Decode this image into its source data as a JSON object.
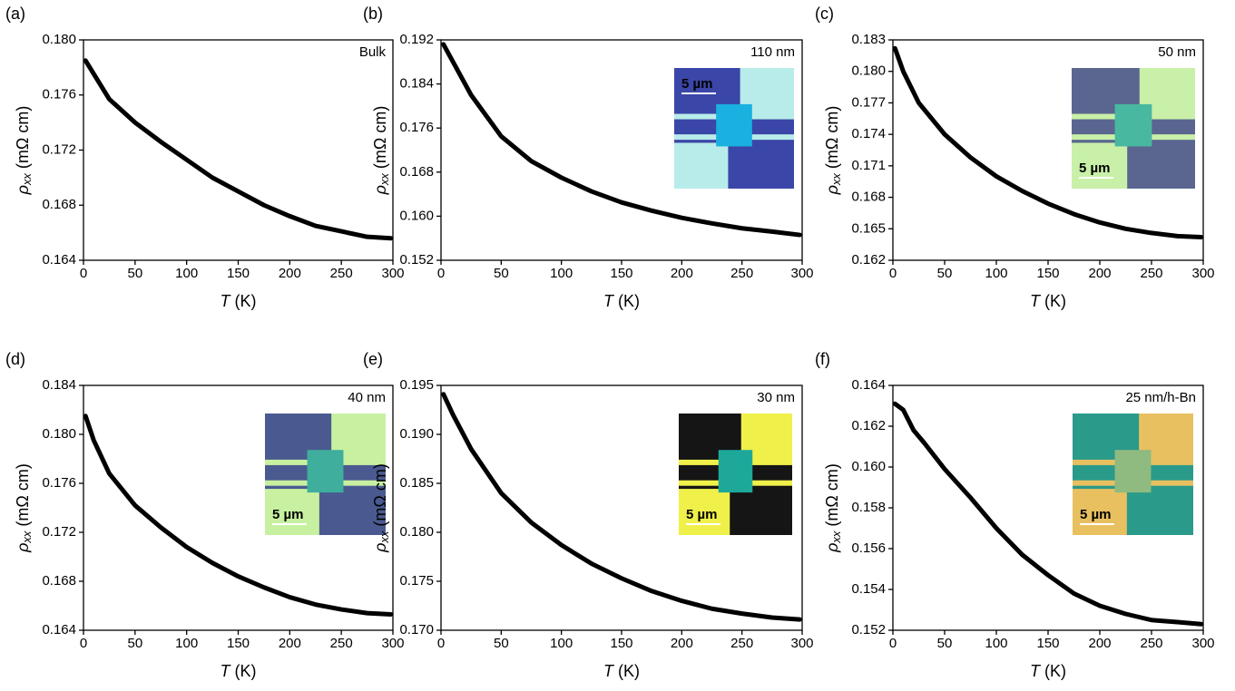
{
  "chart_data": [
    {
      "type": "line",
      "panel": "(a)",
      "annotation": "Bulk",
      "x_label": {
        "symbol": "T",
        "unit": "(K)"
      },
      "y_label": {
        "symbol": "ρ",
        "subscript": "xx",
        "unit": "(mΩ cm)"
      },
      "x": [
        2,
        25,
        50,
        75,
        100,
        125,
        150,
        175,
        200,
        225,
        250,
        275,
        298
      ],
      "values": [
        0.1785,
        0.1757,
        0.174,
        0.1726,
        0.1713,
        0.17,
        0.169,
        0.168,
        0.1672,
        0.1665,
        0.1661,
        0.1657,
        0.1656
      ],
      "color": "#000000",
      "xlim": [
        0,
        300
      ],
      "xticks": [
        0,
        50,
        100,
        150,
        200,
        250,
        300
      ],
      "ylim": [
        0.164,
        0.18
      ],
      "yticks": [
        0.164,
        0.168,
        0.172,
        0.176,
        {
          "value": 0.18,
          "label": "0.180"
        }
      ]
    },
    {
      "type": "line",
      "panel": "(b)",
      "annotation": "110 nm",
      "inset_label": "5 µm",
      "x_label": {
        "symbol": "T",
        "unit": "(K)"
      },
      "y_label": {
        "symbol": "ρ",
        "subscript": "xx",
        "unit": "(mΩ cm)"
      },
      "x": [
        2,
        10,
        25,
        50,
        75,
        100,
        125,
        150,
        175,
        200,
        225,
        250,
        275,
        298
      ],
      "values": [
        0.1912,
        0.188,
        0.182,
        0.1745,
        0.17,
        0.167,
        0.1645,
        0.1625,
        0.161,
        0.1597,
        0.1587,
        0.1578,
        0.1572,
        0.1566
      ],
      "color": "#000000",
      "xlim": [
        0,
        300
      ],
      "xticks": [
        0,
        50,
        100,
        150,
        200,
        250,
        300
      ],
      "ylim": [
        0.152,
        0.192
      ],
      "yticks": [
        0.152,
        {
          "value": 0.16,
          "label": "0.160"
        },
        0.168,
        0.176,
        0.184,
        0.192
      ]
    },
    {
      "type": "line",
      "panel": "(c)",
      "annotation": "50 nm",
      "inset_label": "5 µm",
      "x_label": {
        "symbol": "T",
        "unit": "(K)"
      },
      "y_label": {
        "symbol": "ρ",
        "subscript": "xx",
        "unit": "(mΩ cm)"
      },
      "x": [
        2,
        10,
        25,
        50,
        75,
        100,
        125,
        150,
        175,
        200,
        225,
        250,
        275,
        298
      ],
      "values": [
        0.1822,
        0.18,
        0.177,
        0.174,
        0.1718,
        0.17,
        0.1686,
        0.1674,
        0.1664,
        0.1656,
        0.165,
        0.1646,
        0.1643,
        0.1642
      ],
      "color": "#000000",
      "xlim": [
        0,
        300
      ],
      "xticks": [
        0,
        50,
        100,
        150,
        200,
        250,
        300
      ],
      "ylim": [
        0.162,
        0.183
      ],
      "yticks": [
        0.162,
        0.165,
        0.168,
        0.171,
        0.174,
        0.177,
        {
          "value": 0.18,
          "label": "0.180"
        },
        0.183
      ]
    },
    {
      "type": "line",
      "panel": "(d)",
      "annotation": "40 nm",
      "inset_label": "5 µm",
      "x_label": {
        "symbol": "T",
        "unit": "(K)"
      },
      "y_label": {
        "symbol": "ρ",
        "subscript": "xx",
        "unit": "(mΩ cm)"
      },
      "x": [
        2,
        10,
        25,
        50,
        75,
        100,
        125,
        150,
        175,
        200,
        225,
        250,
        275,
        298
      ],
      "values": [
        0.1815,
        0.1795,
        0.1768,
        0.1742,
        0.1724,
        0.1708,
        0.1695,
        0.1684,
        0.1675,
        0.1667,
        0.1661,
        0.1657,
        0.1654,
        0.1653
      ],
      "color": "#000000",
      "xlim": [
        0,
        300
      ],
      "xticks": [
        0,
        50,
        100,
        150,
        200,
        250,
        300
      ],
      "ylim": [
        0.164,
        0.184
      ],
      "yticks": [
        0.164,
        0.168,
        0.172,
        0.176,
        {
          "value": 0.18,
          "label": "0.180"
        },
        0.184
      ]
    },
    {
      "type": "line",
      "panel": "(e)",
      "annotation": "30 nm",
      "inset_label": "5 µm",
      "x_label": {
        "symbol": "T",
        "unit": "(K)"
      },
      "y_label": {
        "symbol": "ρ",
        "subscript": "xx",
        "unit": "(mΩ cm)"
      },
      "x": [
        2,
        10,
        25,
        50,
        75,
        100,
        125,
        150,
        175,
        200,
        225,
        250,
        275,
        298
      ],
      "values": [
        0.1941,
        0.192,
        0.1885,
        0.184,
        0.181,
        0.1787,
        0.1768,
        0.1753,
        0.174,
        0.173,
        0.1722,
        0.1717,
        0.1713,
        0.1711
      ],
      "color": "#000000",
      "xlim": [
        0,
        300
      ],
      "xticks": [
        0,
        50,
        100,
        150,
        200,
        250,
        300
      ],
      "ylim": [
        0.17,
        0.195
      ],
      "yticks": [
        {
          "value": 0.17,
          "label": "0.170"
        },
        0.175,
        {
          "value": 0.18,
          "label": "0.180"
        },
        0.185,
        {
          "value": 0.19,
          "label": "0.190"
        },
        0.195
      ]
    },
    {
      "type": "line",
      "panel": "(f)",
      "annotation": "25 nm/h-Bn",
      "inset_label": "5 µm",
      "x_label": {
        "symbol": "T",
        "unit": "(K)"
      },
      "y_label": {
        "symbol": "ρ",
        "subscript": "xx",
        "unit": "(mΩ cm)"
      },
      "x": [
        2,
        10,
        20,
        30,
        50,
        75,
        100,
        125,
        150,
        175,
        200,
        225,
        250,
        275,
        298
      ],
      "values": [
        0.1631,
        0.1628,
        0.1618,
        0.1612,
        0.1599,
        0.1585,
        0.157,
        0.1557,
        0.1547,
        0.1538,
        0.1532,
        0.1528,
        0.1525,
        0.1524,
        0.1523
      ],
      "color": "#000000",
      "xlim": [
        0,
        300
      ],
      "xticks": [
        0,
        50,
        100,
        150,
        200,
        250,
        300
      ],
      "ylim": [
        0.152,
        0.164
      ],
      "yticks": [
        0.152,
        0.154,
        0.156,
        0.158,
        {
          "value": 0.16,
          "label": "0.160"
        },
        0.162,
        0.164
      ]
    }
  ]
}
